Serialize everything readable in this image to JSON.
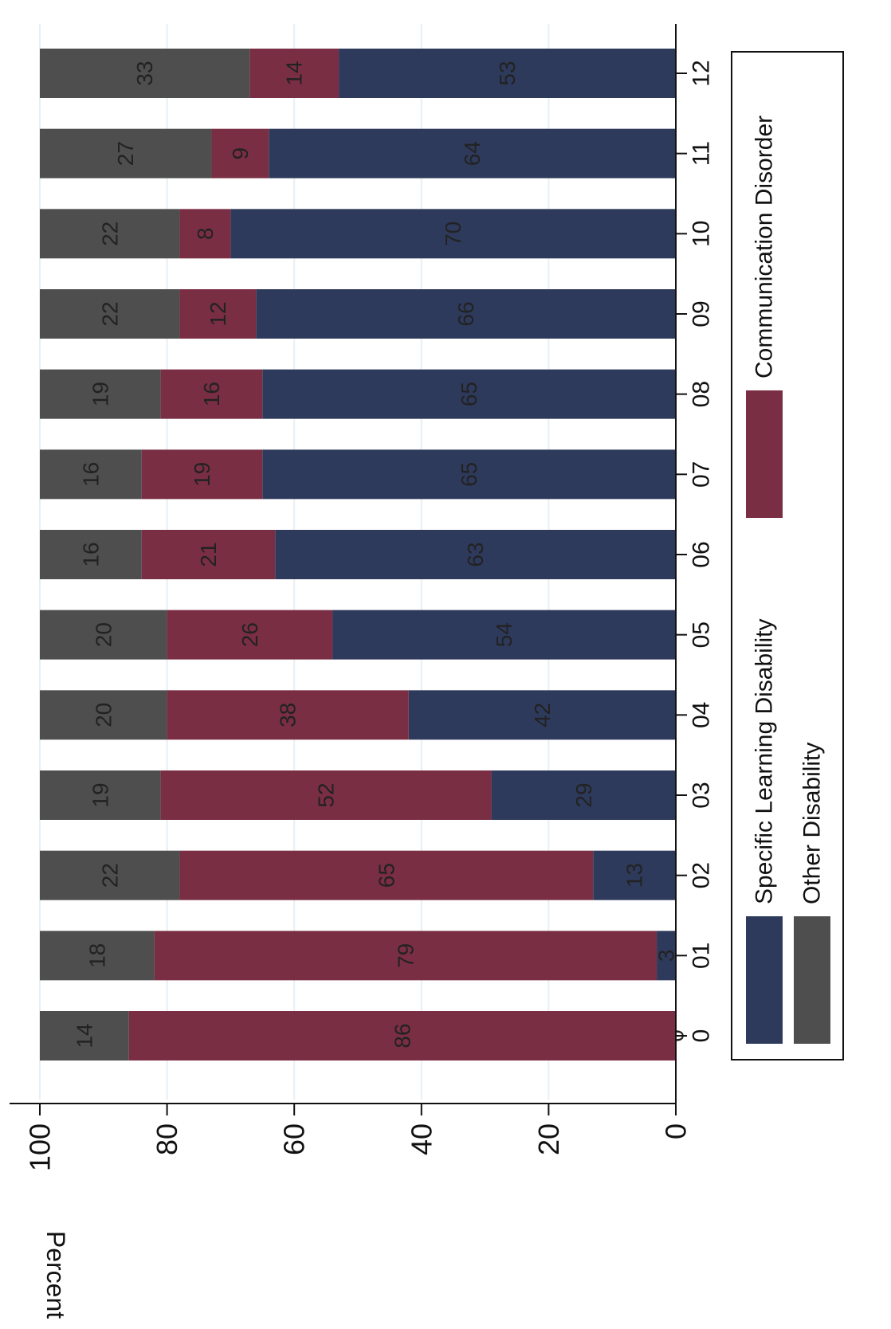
{
  "chart_data": {
    "type": "bar",
    "stacked": true,
    "orientation": "vertical",
    "ylabel": "Percent",
    "ylim": [
      0,
      100
    ],
    "yticks": [
      0,
      20,
      40,
      60,
      80,
      100
    ],
    "grid": true,
    "categories": [
      "0",
      "01",
      "02",
      "03",
      "04",
      "05",
      "06",
      "07",
      "08",
      "09",
      "10",
      "11",
      "12"
    ],
    "series": [
      {
        "name": "Specific Learning Disability",
        "color": "#2e3a5c",
        "values": [
          0,
          3,
          13,
          29,
          42,
          54,
          63,
          65,
          65,
          66,
          70,
          64,
          53
        ]
      },
      {
        "name": "Communication Disorder",
        "color": "#7a2e44",
        "values": [
          86,
          79,
          65,
          52,
          38,
          26,
          21,
          19,
          16,
          12,
          8,
          9,
          14
        ]
      },
      {
        "name": "Other Disability",
        "color": "#4e4e4e",
        "values": [
          14,
          18,
          22,
          19,
          20,
          20,
          16,
          16,
          19,
          22,
          22,
          27,
          33
        ]
      }
    ],
    "legend_position": "bottom"
  }
}
